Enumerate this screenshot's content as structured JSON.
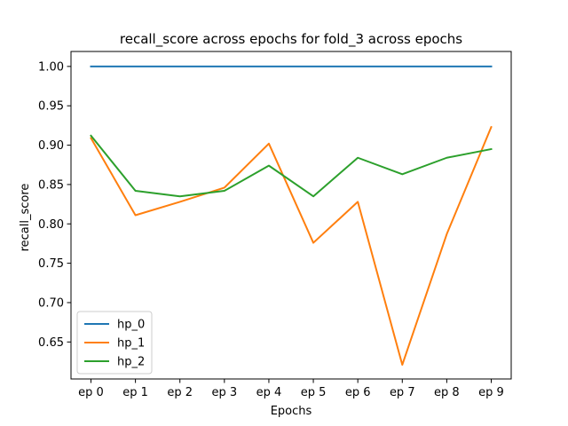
{
  "chart_data": {
    "type": "line",
    "title": "recall_score across epochs for fold_3 across epochs",
    "xlabel": "Epochs",
    "ylabel": "recall_score",
    "categories": [
      "ep 0",
      "ep 1",
      "ep 2",
      "ep 3",
      "ep 4",
      "ep 5",
      "ep 6",
      "ep 7",
      "ep 8",
      "ep 9"
    ],
    "ylim": [
      0.603,
      1.019
    ],
    "yticks": [
      "0.65",
      "0.70",
      "0.75",
      "0.80",
      "0.85",
      "0.90",
      "0.95",
      "1.00"
    ],
    "legend_position": "lower-left",
    "grid": false,
    "series": [
      {
        "name": "hp_0",
        "color": "#1f77b4",
        "values": [
          1.0,
          1.0,
          1.0,
          1.0,
          1.0,
          1.0,
          1.0,
          1.0,
          1.0,
          1.0
        ]
      },
      {
        "name": "hp_1",
        "color": "#ff7f0e",
        "values": [
          0.909,
          0.811,
          0.828,
          0.846,
          0.902,
          0.776,
          0.828,
          0.621,
          0.787,
          0.923
        ]
      },
      {
        "name": "hp_2",
        "color": "#2ca02c",
        "values": [
          0.912,
          0.842,
          0.835,
          0.842,
          0.874,
          0.835,
          0.884,
          0.863,
          0.884,
          0.895
        ]
      }
    ]
  }
}
